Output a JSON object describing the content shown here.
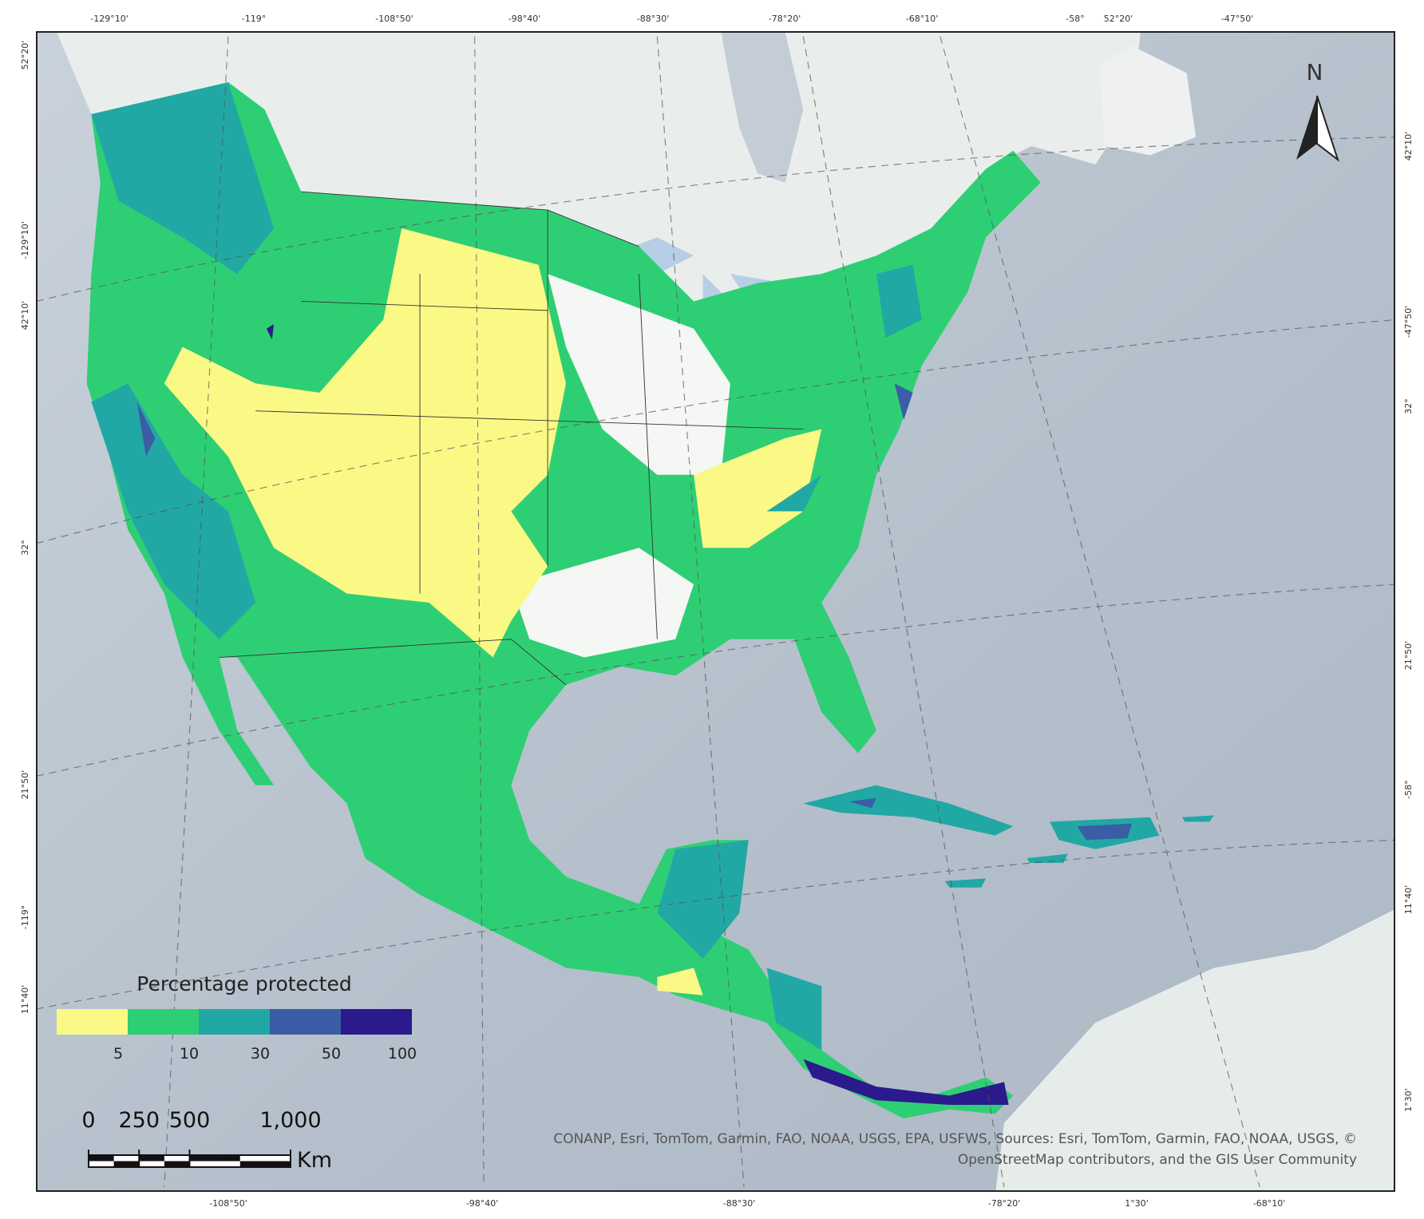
{
  "map": {
    "graticule": {
      "top": [
        "-129°10'",
        "-119°",
        "-108°50'",
        "-98°40'",
        "-88°30'",
        "-78°20'",
        "-68°10'",
        "-58°",
        "52°20'",
        "-47°50'"
      ],
      "bottom": [
        "-108°50'",
        "-98°40'",
        "-88°30'",
        "-78°20'",
        "1°30'",
        "-68°10'"
      ],
      "left": [
        "52°20'",
        "-129°10'",
        "42°10'",
        "32°",
        "21°50'",
        "-119°",
        "11°40'"
      ],
      "right": [
        "42°10'",
        "-47°50'",
        "32°",
        "21°50'",
        "-58°",
        "11°40'",
        "1°30'"
      ]
    },
    "north_arrow": "N",
    "legend": {
      "title": "Percentage protected",
      "colors": [
        "#fbf986",
        "#2ecf74",
        "#21a8a4",
        "#3a5da6",
        "#2a1a8c"
      ],
      "breaks": [
        5,
        10,
        30,
        50,
        100
      ]
    },
    "scale_bar": {
      "ticks": [
        0,
        250,
        500,
        {
          "value": 1000,
          "label": "1,000"
        }
      ],
      "unit": "Km"
    },
    "attribution": [
      "CONANP, Esri, TomTom, Garmin, FAO, NOAA, USGS, EPA, USFWS, Sources: Esri, TomTom, Garmin, FAO, NOAA, USGS, ©",
      "OpenStreetMap contributors, and the GIS User Community"
    ]
  }
}
